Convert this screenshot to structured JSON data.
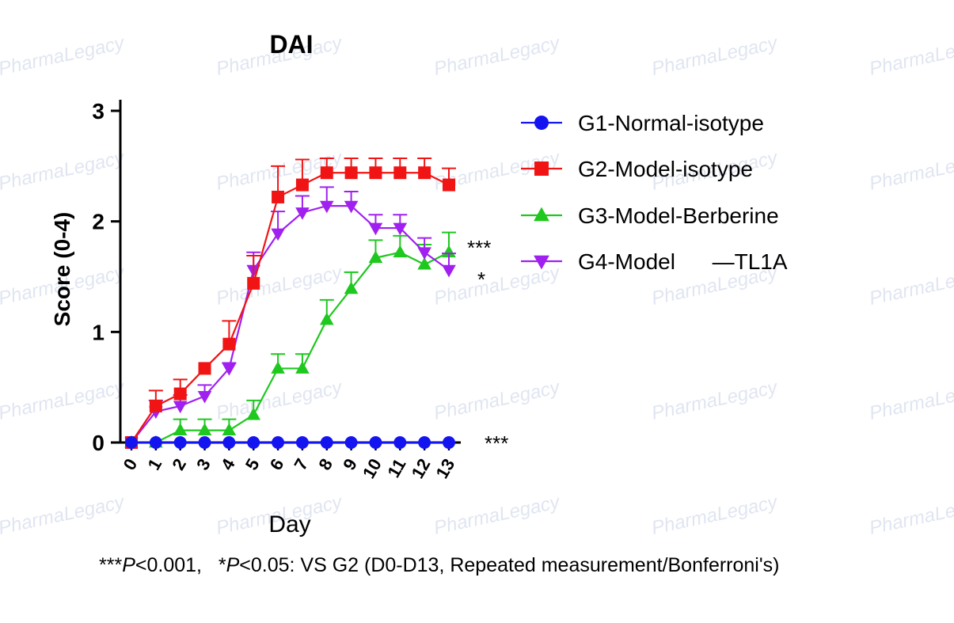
{
  "watermark": "PharmaLegacy",
  "footnote": {
    "p1_prefix": "***",
    "p1_var": "P",
    "p1_rest": "<0.001,   *",
    "p2_var": "P",
    "p2_rest": "<0.05: VS G2 (D0-D13, Repeated measurement/Bonferroni's)"
  },
  "chart_data": {
    "type": "line",
    "title": "DAI",
    "xlabel": "Day",
    "ylabel": "Score (0-4)",
    "ylim": [
      0,
      3
    ],
    "yticks": [
      0,
      1,
      2,
      3
    ],
    "x": [
      0,
      1,
      2,
      3,
      4,
      5,
      6,
      7,
      8,
      9,
      10,
      11,
      12,
      13
    ],
    "legend_position": "right",
    "series": [
      {
        "name": "G1-Normal-isotype",
        "color": "#1414f0",
        "marker": "circle",
        "values": [
          0,
          0,
          0,
          0,
          0,
          0,
          0,
          0,
          0,
          0,
          0,
          0,
          0,
          0
        ],
        "errors": [
          0,
          0,
          0,
          0,
          0,
          0,
          0,
          0,
          0,
          0,
          0,
          0,
          0,
          0
        ],
        "significance": "***"
      },
      {
        "name": "G2-Model-isotype",
        "color": "#f01414",
        "marker": "square",
        "values": [
          0,
          0.33,
          0.44,
          0.67,
          0.89,
          1.44,
          2.22,
          2.33,
          2.44,
          2.44,
          2.44,
          2.44,
          2.44,
          2.33
        ],
        "errors": [
          0,
          0.14,
          0.13,
          0.0,
          0.21,
          0.25,
          0.28,
          0.23,
          0.13,
          0.13,
          0.13,
          0.13,
          0.13,
          0.15
        ],
        "significance": ""
      },
      {
        "name": "G3-Model-Berberine",
        "color": "#1ec81e",
        "marker": "triangle-up",
        "values": [
          0,
          0,
          0.11,
          0.11,
          0.11,
          0.25,
          0.67,
          0.67,
          1.11,
          1.39,
          1.67,
          1.72,
          1.61,
          1.72
        ],
        "errors": [
          0,
          0,
          0.1,
          0.1,
          0.1,
          0.13,
          0.13,
          0.13,
          0.18,
          0.15,
          0.16,
          0.15,
          0.18,
          0.18
        ],
        "significance": "***"
      },
      {
        "name": "G4-Model      —TL1A",
        "color": "#a020f0",
        "marker": "triangle-down",
        "values": [
          0,
          0.28,
          0.33,
          0.42,
          0.67,
          1.56,
          1.89,
          2.08,
          2.14,
          2.14,
          1.94,
          1.94,
          1.72,
          1.56
        ],
        "errors": [
          0,
          0.1,
          0.1,
          0.1,
          0.05,
          0.16,
          0.2,
          0.15,
          0.17,
          0.13,
          0.12,
          0.12,
          0.13,
          0.15
        ],
        "significance": "*"
      }
    ]
  }
}
